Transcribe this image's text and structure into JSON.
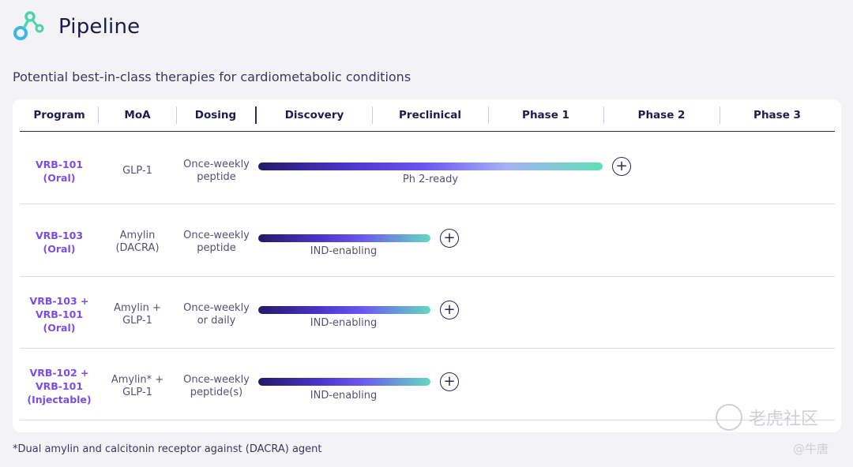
{
  "header": {
    "title": "Pipeline",
    "logo_icon": "connected-nodes-icon"
  },
  "subtitle": "Potential best-in-class therapies for cardiometabolic conditions",
  "table": {
    "columns": [
      "Program",
      "MoA",
      "Dosing",
      "Discovery",
      "Preclinical",
      "Phase 1",
      "Phase 2",
      "Phase 3"
    ],
    "rows": [
      {
        "program": [
          "VRB-101",
          "(Oral)"
        ],
        "moa": [
          "GLP-1"
        ],
        "dosing": [
          "Once-weekly",
          "peptide"
        ],
        "status": "Ph 2-ready",
        "progress_phase": "Phase 1 complete"
      },
      {
        "program": [
          "VRB-103",
          "(Oral)"
        ],
        "moa": [
          "Amylin",
          "(DACRA)"
        ],
        "dosing": [
          "Once-weekly",
          "peptide"
        ],
        "status": "IND-enabling",
        "progress_phase": "Preclinical"
      },
      {
        "program": [
          "VRB-103 +",
          "VRB-101",
          "(Oral)"
        ],
        "moa": [
          "Amylin +",
          "GLP-1"
        ],
        "dosing": [
          "Once-weekly",
          "or daily"
        ],
        "status": "IND-enabling",
        "progress_phase": "Preclinical"
      },
      {
        "program": [
          "VRB-102 +",
          "VRB-101",
          "(Injectable)"
        ],
        "moa": [
          "Amylin* +",
          "GLP-1"
        ],
        "dosing": [
          "Once-weekly",
          "peptide(s)"
        ],
        "status": "IND-enabling",
        "progress_phase": "Preclinical"
      }
    ]
  },
  "expand_icon": "plus-circle-icon",
  "footnote": "*Dual amylin and calcitonin receptor against (DACRA) agent",
  "watermark": {
    "brand": "老虎社区",
    "handle": "@牛唐"
  },
  "colors": {
    "program_text": "#7b4de8",
    "bar_start": "#231a67",
    "bar_end": "#5ce0b6",
    "title": "#1c1a4a"
  }
}
